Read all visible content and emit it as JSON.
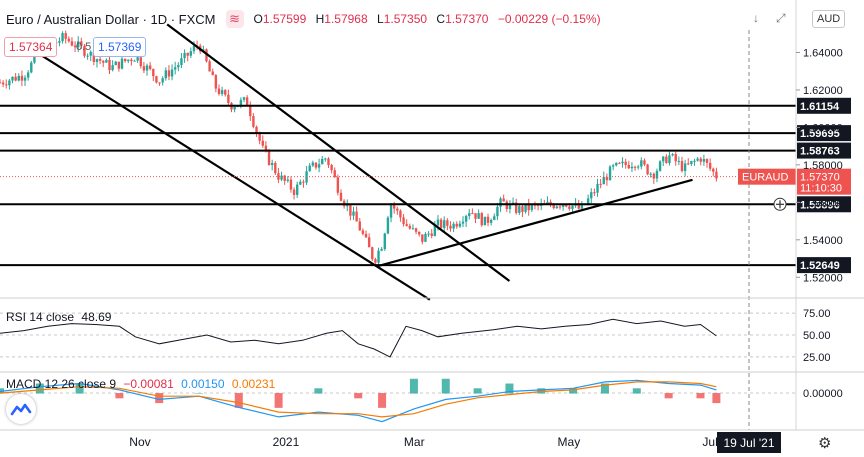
{
  "header": {
    "symbol": "Euro / Australian Dollar · 1D · FXCM",
    "logo_glyph": "≋",
    "ohlc": {
      "O": "1.57599",
      "H": "1.57968",
      "L": "1.57350",
      "C": "1.57370",
      "change": "−0.00229 (−0.15%)"
    },
    "sell_price": "1.57364",
    "spread": "0.5",
    "buy_price": "1.57369",
    "currency": "AUD",
    "down_icon": "↓",
    "expand_icon": "⤢"
  },
  "levels": [
    {
      "label": "1.61154",
      "value": 1.61154
    },
    {
      "label": "1.59695",
      "value": 1.59695
    },
    {
      "label": "1.58763",
      "value": 1.58763
    },
    {
      "label": "1.55896",
      "value": 1.55896
    },
    {
      "label": "1.52649",
      "value": 1.52649
    }
  ],
  "current": {
    "symbol": "EURAUD",
    "price": "1.57370",
    "countdown": "11:10:30",
    "value": 1.5737
  },
  "cursor_date": "19 Jul '21",
  "chart_data": {
    "type": "candlestick",
    "ylim": [
      1.51,
      1.652
    ],
    "yticks": [
      {
        "label": "1.64000",
        "value": 1.64
      },
      {
        "label": "1.62000",
        "value": 1.62
      },
      {
        "label": "1.60000",
        "value": 1.6
      },
      {
        "label": "1.58000",
        "value": 1.58
      },
      {
        "label": "1.56000",
        "value": 1.56
      },
      {
        "label": "1.54000",
        "value": 1.54
      },
      {
        "label": "1.52000",
        "value": 1.52
      }
    ],
    "xticks": [
      "Nov",
      "2021",
      "Mar",
      "May",
      "Jul"
    ],
    "trendlines": [
      {
        "from": [
          0.02,
          1.647
        ],
        "to": [
          0.54,
          1.508
        ]
      },
      {
        "from": [
          0.21,
          1.655
        ],
        "to": [
          0.64,
          1.518
        ]
      },
      {
        "from": [
          0.475,
          1.526
        ],
        "to": [
          0.87,
          1.572
        ]
      }
    ],
    "price_path": [
      [
        0.0,
        1.624
      ],
      [
        0.03,
        1.628
      ],
      [
        0.05,
        1.64
      ],
      [
        0.08,
        1.648
      ],
      [
        0.11,
        1.64
      ],
      [
        0.14,
        1.632
      ],
      [
        0.17,
        1.638
      ],
      [
        0.2,
        1.625
      ],
      [
        0.23,
        1.636
      ],
      [
        0.25,
        1.645
      ],
      [
        0.27,
        1.622
      ],
      [
        0.29,
        1.612
      ],
      [
        0.31,
        1.614
      ],
      [
        0.33,
        1.588
      ],
      [
        0.35,
        1.574
      ],
      [
        0.37,
        1.566
      ],
      [
        0.39,
        1.578
      ],
      [
        0.41,
        1.584
      ],
      [
        0.43,
        1.562
      ],
      [
        0.45,
        1.548
      ],
      [
        0.47,
        1.529
      ],
      [
        0.48,
        1.538
      ],
      [
        0.49,
        1.56
      ],
      [
        0.51,
        1.548
      ],
      [
        0.53,
        1.54
      ],
      [
        0.55,
        1.548
      ],
      [
        0.57,
        1.548
      ],
      [
        0.59,
        1.556
      ],
      [
        0.61,
        1.549
      ],
      [
        0.63,
        1.56
      ],
      [
        0.65,
        1.556
      ],
      [
        0.68,
        1.558
      ],
      [
        0.71,
        1.56
      ],
      [
        0.73,
        1.556
      ],
      [
        0.75,
        1.568
      ],
      [
        0.77,
        1.578
      ],
      [
        0.8,
        1.582
      ],
      [
        0.82,
        1.575
      ],
      [
        0.84,
        1.585
      ],
      [
        0.86,
        1.578
      ],
      [
        0.88,
        1.584
      ],
      [
        0.9,
        1.574
      ]
    ],
    "rsi": {
      "label": "RSI 14 close",
      "value": "48.69",
      "levels": [
        {
          "label": "75.00",
          "value": 75
        },
        {
          "label": "50.00",
          "value": 50
        },
        {
          "label": "25.00",
          "value": 25
        }
      ],
      "path": [
        [
          0.0,
          52
        ],
        [
          0.03,
          55
        ],
        [
          0.06,
          60
        ],
        [
          0.09,
          63
        ],
        [
          0.12,
          62
        ],
        [
          0.15,
          60
        ],
        [
          0.17,
          48
        ],
        [
          0.2,
          40
        ],
        [
          0.23,
          45
        ],
        [
          0.26,
          50
        ],
        [
          0.29,
          42
        ],
        [
          0.32,
          44
        ],
        [
          0.35,
          40
        ],
        [
          0.38,
          44
        ],
        [
          0.41,
          52
        ],
        [
          0.43,
          55
        ],
        [
          0.45,
          40
        ],
        [
          0.47,
          34
        ],
        [
          0.49,
          25
        ],
        [
          0.51,
          60
        ],
        [
          0.53,
          55
        ],
        [
          0.55,
          48
        ],
        [
          0.58,
          52
        ],
        [
          0.62,
          56
        ],
        [
          0.65,
          60
        ],
        [
          0.68,
          57
        ],
        [
          0.71,
          60
        ],
        [
          0.74,
          62
        ],
        [
          0.77,
          68
        ],
        [
          0.8,
          63
        ],
        [
          0.83,
          66
        ],
        [
          0.86,
          60
        ],
        [
          0.88,
          62
        ],
        [
          0.9,
          49
        ]
      ]
    },
    "macd": {
      "label": "MACD 12 26 close 9",
      "values": [
        "−0.00081",
        "0.00150",
        "0.00231"
      ],
      "zero_label": "0.00000",
      "macd_path": [
        [
          0.0,
          0.001
        ],
        [
          0.05,
          0.004
        ],
        [
          0.1,
          0.006
        ],
        [
          0.15,
          0.002
        ],
        [
          0.2,
          -0.004
        ],
        [
          0.25,
          -0.002
        ],
        [
          0.3,
          -0.009
        ],
        [
          0.35,
          -0.015
        ],
        [
          0.4,
          -0.012
        ],
        [
          0.45,
          -0.014
        ],
        [
          0.48,
          -0.018
        ],
        [
          0.52,
          -0.01
        ],
        [
          0.56,
          -0.004
        ],
        [
          0.6,
          -0.002
        ],
        [
          0.64,
          0.001
        ],
        [
          0.68,
          0.002
        ],
        [
          0.72,
          0.003
        ],
        [
          0.76,
          0.007
        ],
        [
          0.8,
          0.008
        ],
        [
          0.84,
          0.006
        ],
        [
          0.88,
          0.005
        ],
        [
          0.9,
          0.002
        ]
      ],
      "signal_path": [
        [
          0.0,
          0.0
        ],
        [
          0.05,
          0.002
        ],
        [
          0.1,
          0.004
        ],
        [
          0.15,
          0.003
        ],
        [
          0.2,
          -0.002
        ],
        [
          0.25,
          -0.002
        ],
        [
          0.3,
          -0.006
        ],
        [
          0.35,
          -0.012
        ],
        [
          0.4,
          -0.013
        ],
        [
          0.45,
          -0.013
        ],
        [
          0.48,
          -0.015
        ],
        [
          0.52,
          -0.013
        ],
        [
          0.56,
          -0.007
        ],
        [
          0.6,
          -0.003
        ],
        [
          0.64,
          -0.001
        ],
        [
          0.68,
          0.001
        ],
        [
          0.72,
          0.002
        ],
        [
          0.76,
          0.005
        ],
        [
          0.8,
          0.007
        ],
        [
          0.84,
          0.007
        ],
        [
          0.88,
          0.006
        ],
        [
          0.9,
          0.004
        ]
      ]
    }
  }
}
